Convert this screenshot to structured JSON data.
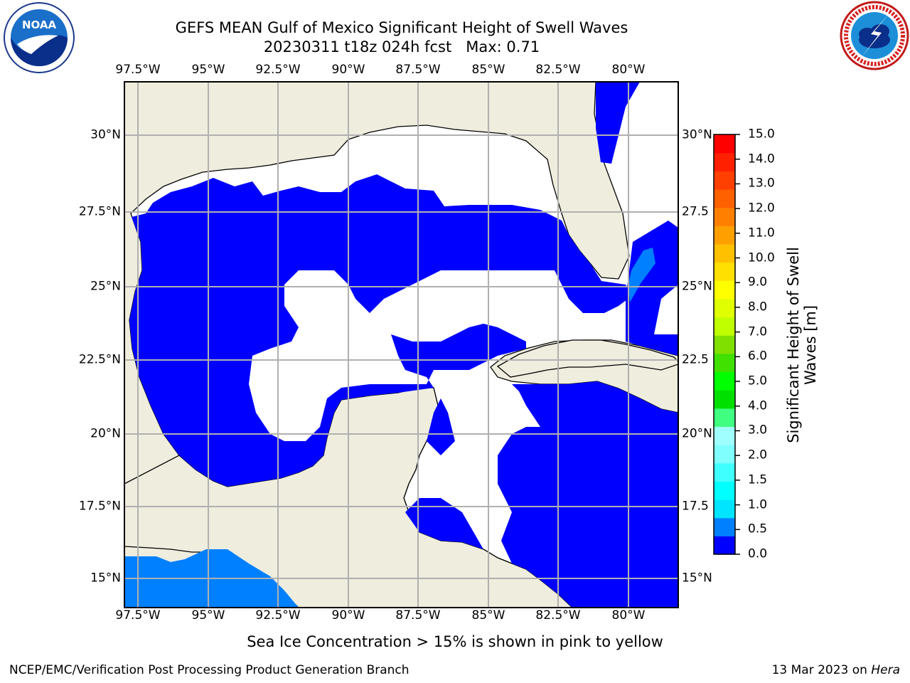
{
  "header": {
    "title": "GEFS MEAN Gulf of Mexico Significant Height of Swell Waves",
    "subtitle": "20230311 t18z 024h fcst   Max: 0.71"
  },
  "logos": {
    "left": {
      "text": "NOAA",
      "icon": "noaa-logo-icon"
    },
    "right": {
      "icon": "nws-logo-icon"
    }
  },
  "map": {
    "colors": {
      "land": "#efedde",
      "water_low": "#0000ff",
      "water_mid": "#0080ff",
      "no_data": "#ffffff",
      "grid": "#b0b0b0",
      "coast": "#000000"
    },
    "lon_ticks": [
      "97.5°W",
      "95°W",
      "92.5°W",
      "90°W",
      "87.5°W",
      "85°W",
      "82.5°W",
      "80°W"
    ],
    "lat_ticks_left": [
      "30°N",
      "27.5°N",
      "25°N",
      "22.5°N",
      "20°N",
      "17.5°N",
      "15°N"
    ],
    "lat_ticks_right": [
      "30°N",
      "27.5",
      "25°N",
      "22.5",
      "20°N",
      "17.5",
      "15°N"
    ]
  },
  "colorbar": {
    "label_line1": "Significant Height of Swell",
    "label_line2": "Waves [m]",
    "ticks": [
      "15.0",
      "14.0",
      "13.0",
      "12.0",
      "11.0",
      "10.0",
      "9.0",
      "8.0",
      "7.0",
      "6.0",
      "5.0",
      "4.0",
      "3.0",
      "2.0",
      "1.5",
      "1.0",
      "0.5",
      "0.0"
    ],
    "colors": [
      "#0000ff",
      "#0080ff",
      "#00e5ff",
      "#00ffff",
      "#40ffff",
      "#80ffff",
      "#a0ffff",
      "#40ff80",
      "#00e000",
      "#00ff00",
      "#40e000",
      "#80e000",
      "#c0ff00",
      "#e0ff00",
      "#ffff00",
      "#ffe000",
      "#ffc000",
      "#ffa000",
      "#ff8000",
      "#ff6000",
      "#ff4000",
      "#ff2000",
      "#ff0000"
    ]
  },
  "footer": {
    "caption": "Sea Ice Concentration > 15% is shown in pink to yellow",
    "credit": "NCEP/EMC/Verification Post Processing Product Generation Branch",
    "date": "13 Mar 2023 on",
    "machine": "Hera"
  }
}
